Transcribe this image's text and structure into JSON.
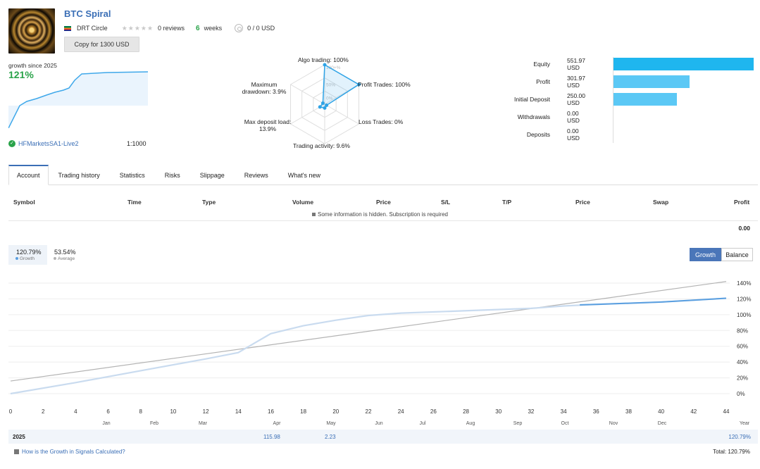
{
  "header": {
    "title": "BTC Spiral",
    "author": "DRT Circle",
    "reviews": "0 reviews",
    "weeks_num": "6",
    "weeks_label": "weeks",
    "subscribers": "0 / 0 USD",
    "copy_button": "Copy for 1300 USD"
  },
  "summary": {
    "growth_label": "growth since 2025",
    "growth_value": "121%",
    "broker": "HFMarketsSA1-Live2",
    "leverage": "1:1000"
  },
  "radar": {
    "labels": {
      "algo": "Algo trading: 100%",
      "profit": "Profit Trades: 100%",
      "loss": "Loss Trades: 0%",
      "activity": "Trading activity: 9.6%",
      "deposit_load_1": "Max deposit load:",
      "deposit_load_2": "13.9%",
      "drawdown_1": "Maximum",
      "drawdown_2": "drawdown: 3.9%"
    },
    "ring_labels": [
      "100+%",
      "50%",
      "0%"
    ],
    "values": {
      "algo": 100,
      "profit": 100,
      "loss": 0,
      "activity": 9.6,
      "deposit_load": 13.9,
      "drawdown": 3.9
    }
  },
  "finance": [
    {
      "label": "Equity",
      "value": "551.97 USD",
      "amount": 551.97
    },
    {
      "label": "Profit",
      "value": "301.97 USD",
      "amount": 301.97
    },
    {
      "label": "Initial Deposit",
      "value": "250.00 USD",
      "amount": 250.0
    },
    {
      "label": "Withdrawals",
      "value": "0.00 USD",
      "amount": 0
    },
    {
      "label": "Deposits",
      "value": "0.00 USD",
      "amount": 0
    }
  ],
  "tabs": [
    "Account",
    "Trading history",
    "Statistics",
    "Risks",
    "Slippage",
    "Reviews",
    "What's new"
  ],
  "table": {
    "headers": [
      "Symbol",
      "Time",
      "Type",
      "Volume",
      "Price",
      "S/L",
      "T/P",
      "Price",
      "Swap",
      "Profit"
    ],
    "hidden_note": "Some information is hidden. Subscription is required",
    "total_profit": "0.00"
  },
  "legend": {
    "growth_value": "120.79%",
    "growth_label": "Growth",
    "average_value": "53.54%",
    "average_label": "Average"
  },
  "toggle": {
    "growth": "Growth",
    "balance": "Balance"
  },
  "chart_data": {
    "type": "line",
    "x_ticks": [
      "0",
      "2",
      "4",
      "6",
      "8",
      "10",
      "12",
      "14",
      "16",
      "18",
      "20",
      "22",
      "24",
      "26",
      "28",
      "30",
      "32",
      "34",
      "36",
      "38",
      "40",
      "42",
      "44"
    ],
    "month_labels": [
      "Jan",
      "Feb",
      "Mar",
      "Apr",
      "May",
      "Jun",
      "Jul",
      "Aug",
      "Sep",
      "Oct",
      "Nov",
      "Dec",
      "Year"
    ],
    "y_ticks": [
      "140%",
      "120%",
      "100%",
      "80%",
      "60%",
      "40%",
      "20%",
      "0%"
    ],
    "ylim": [
      0,
      140
    ],
    "xlim": [
      0,
      44
    ],
    "series": [
      {
        "name": "Growth",
        "color": "#c9dbef",
        "highlight_color": "#5a9fe0",
        "x": [
          0,
          4,
          8,
          12,
          14,
          15,
          16,
          18,
          20,
          22,
          24,
          28,
          32,
          34,
          36,
          40,
          44
        ],
        "y": [
          0,
          14,
          29,
          44,
          52,
          64,
          76,
          86,
          93,
          99,
          102,
          105,
          108,
          111,
          113,
          116,
          120.79
        ]
      },
      {
        "name": "Average",
        "color": "#b3b3b3",
        "x": [
          0,
          44
        ],
        "y": [
          16,
          142
        ]
      }
    ]
  },
  "year_row": {
    "year": "2025",
    "apr": "115.98",
    "may": "2.23",
    "total": "120.79%"
  },
  "footer": {
    "link": "How is the Growth in Signals Calculated?",
    "total": "Total: 120.79%"
  }
}
